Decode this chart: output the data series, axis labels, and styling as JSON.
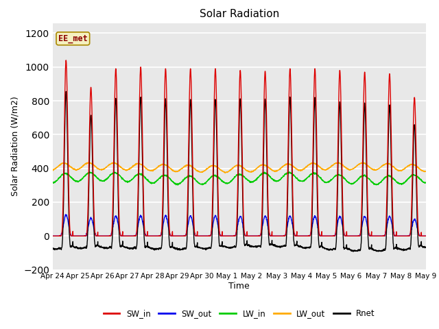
{
  "title": "Solar Radiation",
  "xlabel": "Time",
  "ylabel": "Solar Radiation (W/m2)",
  "ylim": [
    -200,
    1260
  ],
  "yticks": [
    -200,
    0,
    200,
    400,
    600,
    800,
    1000,
    1200
  ],
  "bg_color": "#e8e8e8",
  "grid_color": "#ffffff",
  "colors": {
    "SW_in": "#dd0000",
    "SW_out": "#0000ee",
    "LW_in": "#00cc00",
    "LW_out": "#ffaa00",
    "Rnet": "#000000"
  },
  "watermark": "EE_met",
  "x_tick_labels": [
    "Apr 24",
    "Apr 25",
    "Apr 26",
    "Apr 27",
    "Apr 28",
    "Apr 29",
    "Apr 30",
    "May 1",
    "May 2",
    "May 3",
    "May 4",
    "May 5",
    "May 6",
    "May 7",
    "May 8",
    "May 9"
  ],
  "n_days": 15,
  "pts_per_day": 144,
  "SW_in_peaks": [
    1040,
    880,
    990,
    1000,
    990,
    990,
    990,
    980,
    975,
    990,
    990,
    980,
    970,
    960,
    820
  ],
  "LW_in_base": 340,
  "LW_out_base": 405,
  "Rnet_night": -80,
  "line_width": 1.0
}
